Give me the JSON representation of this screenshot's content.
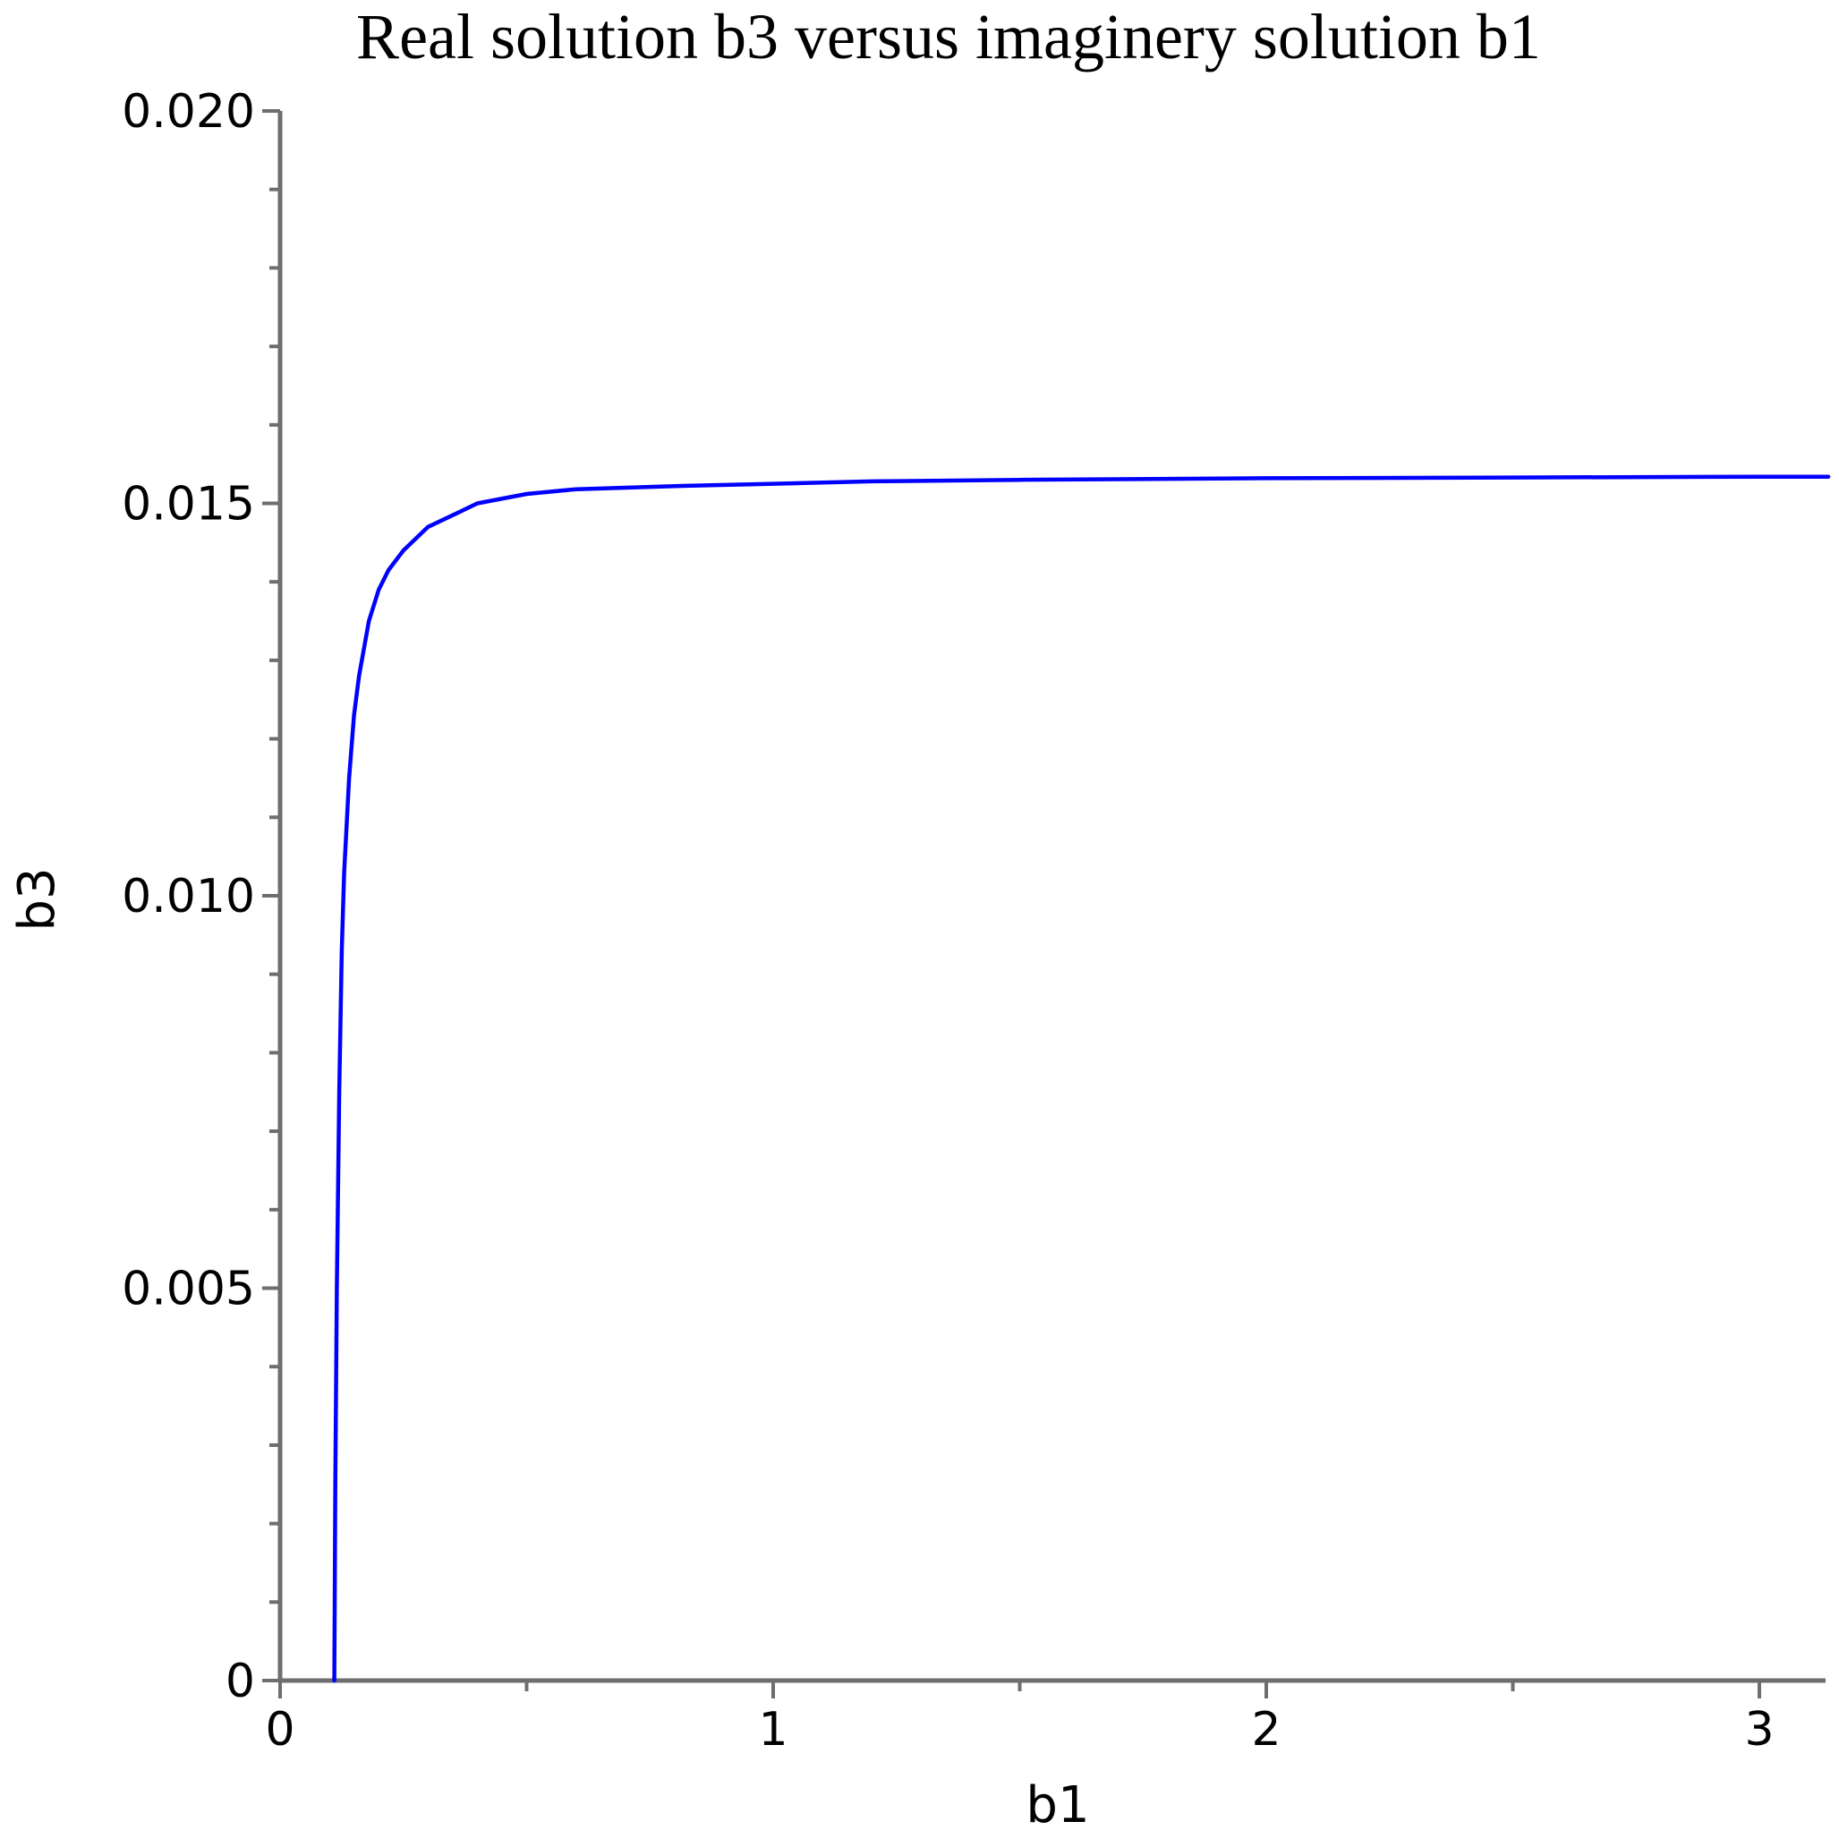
{
  "chart_data": {
    "type": "line",
    "title": "Real solution b3 versus imaginery solution b1",
    "xlabel": "b1",
    "ylabel": "b3",
    "xlim": [
      0,
      3.14
    ],
    "ylim": [
      0,
      0.02
    ],
    "x_ticks": [
      {
        "value": 0,
        "label": "0"
      },
      {
        "value": 1,
        "label": "1"
      },
      {
        "value": 2,
        "label": "2"
      },
      {
        "value": 3,
        "label": "3"
      }
    ],
    "x_minor_ticks": [
      0.5,
      1.5,
      2.5
    ],
    "y_ticks": [
      {
        "value": 0,
        "label": "0"
      },
      {
        "value": 0.005,
        "label": "0.005"
      },
      {
        "value": 0.01,
        "label": "0.010"
      },
      {
        "value": 0.015,
        "label": "0.015"
      },
      {
        "value": 0.02,
        "label": "0.020"
      }
    ],
    "y_minor_ticks": [
      0.001,
      0.002,
      0.003,
      0.004,
      0.006,
      0.007,
      0.008,
      0.009,
      0.011,
      0.012,
      0.013,
      0.014,
      0.016,
      0.017,
      0.018,
      0.019
    ],
    "grid": false,
    "series": [
      {
        "color": "#0000ff",
        "x": [
          0.11,
          0.112,
          0.115,
          0.12,
          0.125,
          0.13,
          0.14,
          0.15,
          0.16,
          0.18,
          0.2,
          0.22,
          0.25,
          0.3,
          0.35,
          0.4,
          0.5,
          0.6,
          0.7,
          0.8,
          1.0,
          1.2,
          1.5,
          2.0,
          2.5,
          3.0,
          3.14
        ],
        "y": [
          0.0,
          0.0025,
          0.005,
          0.0075,
          0.0093,
          0.0103,
          0.0115,
          0.0123,
          0.0128,
          0.0135,
          0.0139,
          0.01415,
          0.0144,
          0.0147,
          0.01485,
          0.015,
          0.01512,
          0.01518,
          0.0152,
          0.01522,
          0.01525,
          0.01528,
          0.0153,
          0.01532,
          0.01533,
          0.01534,
          0.01534
        ]
      }
    ]
  }
}
